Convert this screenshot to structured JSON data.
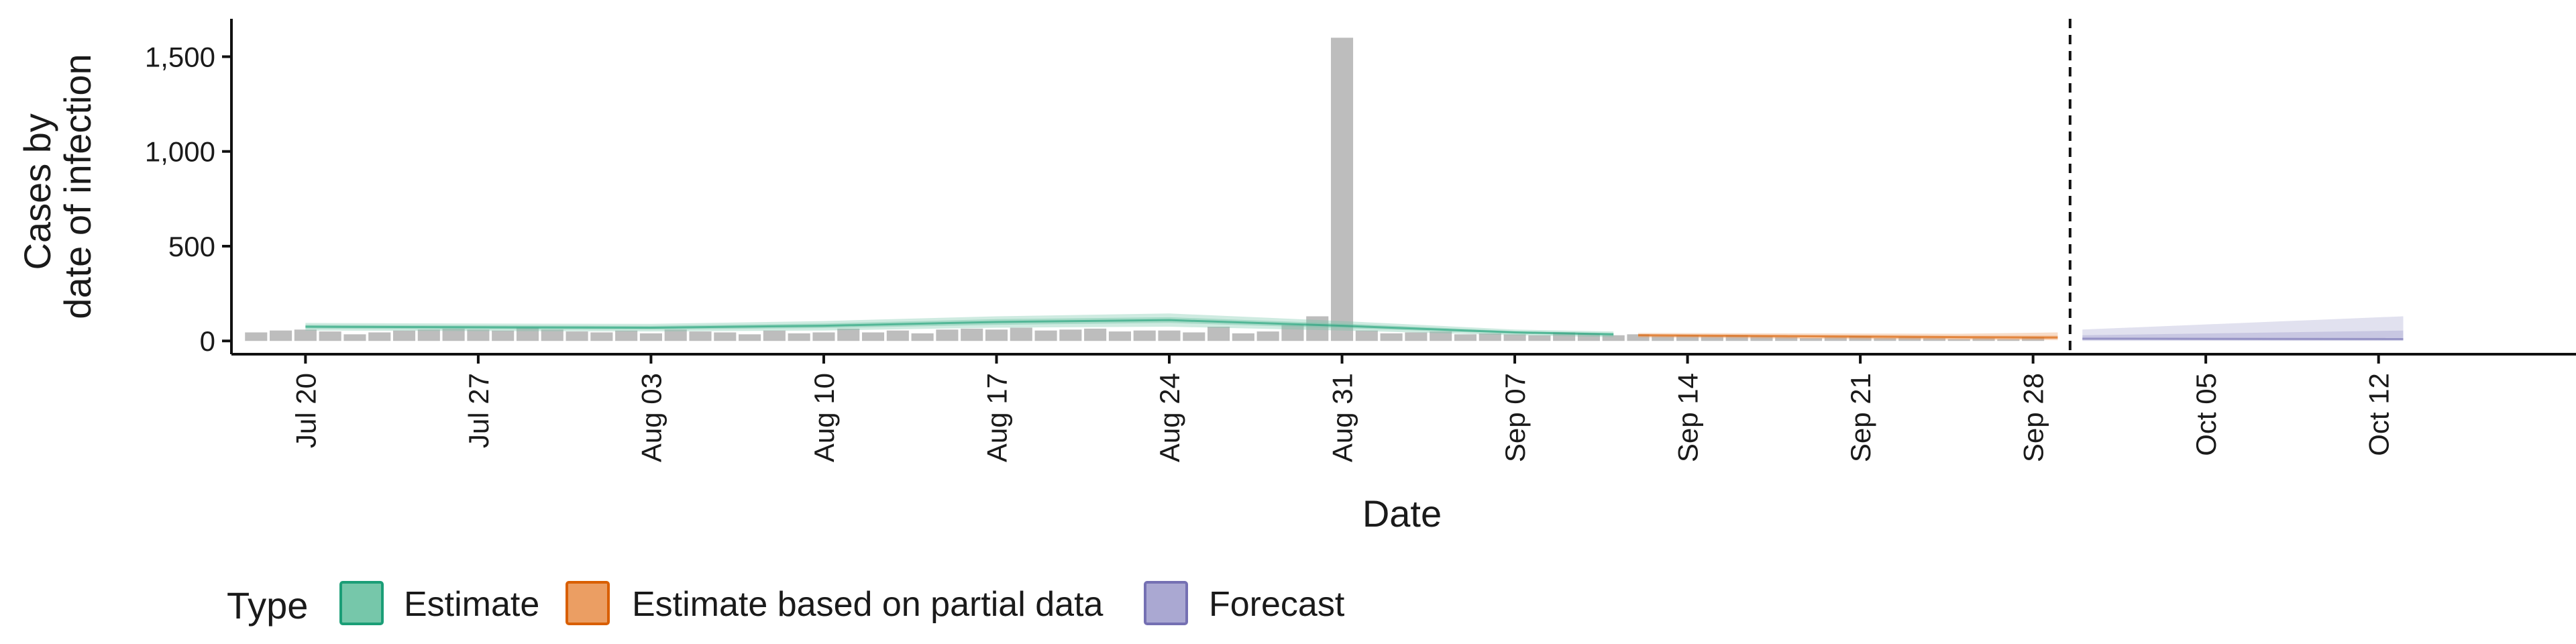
{
  "chart_data": {
    "type": "area",
    "xlabel": "Date",
    "ylabel_lines": [
      "Cases by",
      "date of infection"
    ],
    "ylim": [
      -70,
      1700
    ],
    "yticks": [
      0,
      500,
      1000,
      1500
    ],
    "ytick_labels": [
      "0",
      "500",
      "1,000",
      "1,500"
    ],
    "x_start": "2020-07-17",
    "xlim_days": [
      0,
      95
    ],
    "xticks": [
      {
        "day": 3,
        "label": "Jul 20"
      },
      {
        "day": 10,
        "label": "Jul 27"
      },
      {
        "day": 17,
        "label": "Aug 03"
      },
      {
        "day": 24,
        "label": "Aug 10"
      },
      {
        "day": 31,
        "label": "Aug 17"
      },
      {
        "day": 38,
        "label": "Aug 24"
      },
      {
        "day": 45,
        "label": "Aug 31"
      },
      {
        "day": 52,
        "label": "Sep 07"
      },
      {
        "day": 59,
        "label": "Sep 14"
      },
      {
        "day": 66,
        "label": "Sep 21"
      },
      {
        "day": 73,
        "label": "Sep 28"
      },
      {
        "day": 80,
        "label": "Oct 05"
      },
      {
        "day": 87,
        "label": "Oct 12"
      }
    ],
    "vline_day": 74.5,
    "bars": {
      "start_day": 1,
      "values": [
        45,
        55,
        60,
        50,
        35,
        45,
        55,
        60,
        65,
        60,
        55,
        70,
        60,
        50,
        45,
        55,
        40,
        60,
        50,
        45,
        35,
        55,
        40,
        45,
        65,
        45,
        55,
        40,
        60,
        65,
        60,
        70,
        55,
        60,
        65,
        50,
        55,
        55,
        45,
        75,
        40,
        50,
        85,
        130,
        1600,
        55,
        40,
        45,
        50,
        35,
        40,
        35,
        30,
        45,
        40,
        30,
        35,
        25,
        30,
        25,
        30,
        25,
        20,
        15,
        20,
        25,
        15,
        20,
        15,
        10,
        15,
        10,
        20
      ]
    },
    "series": [
      {
        "name": "Estimate",
        "color": "#1b9e77",
        "fill": "#76c7aa",
        "x": [
          3,
          10,
          17,
          24,
          31,
          38,
          45,
          52,
          56
        ],
        "median": [
          75,
          72,
          70,
          80,
          100,
          110,
          80,
          45,
          35
        ],
        "lower50": [
          65,
          62,
          60,
          68,
          85,
          95,
          68,
          38,
          28
        ],
        "upper50": [
          85,
          82,
          80,
          92,
          115,
          125,
          92,
          52,
          42
        ],
        "lower90": [
          55,
          52,
          50,
          55,
          70,
          75,
          55,
          30,
          20
        ],
        "upper90": [
          95,
          92,
          90,
          105,
          130,
          145,
          105,
          60,
          50
        ]
      },
      {
        "name": "Estimate based on partial data",
        "color": "#d95f02",
        "fill": "#eb9e63",
        "x": [
          57,
          63,
          70,
          74
        ],
        "median": [
          30,
          25,
          20,
          18
        ],
        "lower50": [
          24,
          18,
          12,
          10
        ],
        "upper50": [
          36,
          32,
          28,
          28
        ],
        "lower90": [
          18,
          12,
          6,
          4
        ],
        "upper90": [
          42,
          40,
          38,
          45
        ]
      },
      {
        "name": "Forecast",
        "color": "#7570b3",
        "fill": "#aaa8d2",
        "x": [
          75,
          88
        ],
        "median": [
          12,
          10
        ],
        "lower50": [
          5,
          3
        ],
        "upper50": [
          30,
          55
        ],
        "lower90": [
          0,
          0
        ],
        "upper90": [
          60,
          130
        ]
      }
    ]
  },
  "legend": {
    "title": "Type",
    "items": [
      "Estimate",
      "Estimate based on partial data",
      "Forecast"
    ]
  }
}
